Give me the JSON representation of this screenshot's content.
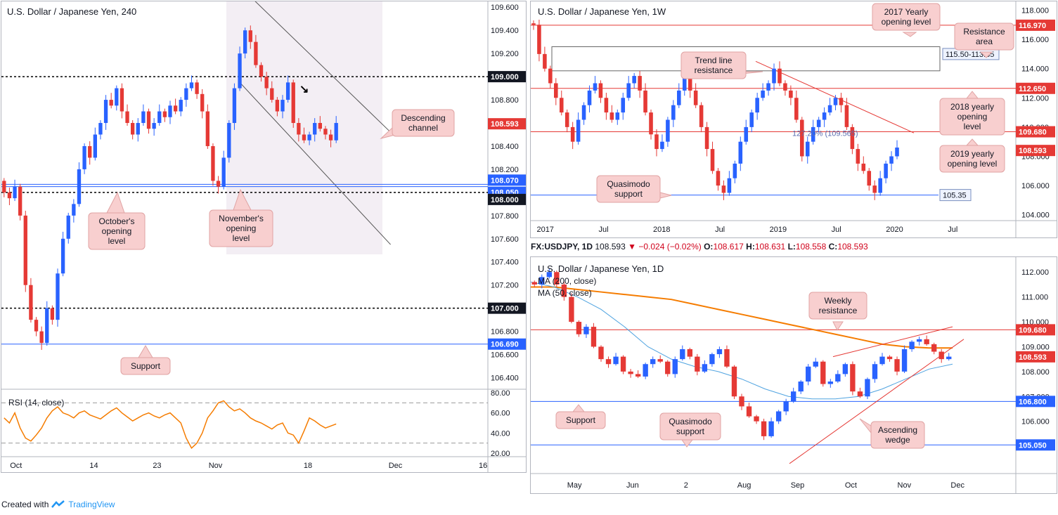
{
  "footer": {
    "created_with": "Created with",
    "brand": "TradingView"
  },
  "ticker_line": {
    "symbol": "FX:USDJPY, 1D",
    "last": "108.593",
    "change": "−0.024 (−0.02%)",
    "o_label": "O:",
    "o": "108.617",
    "h_label": "H:",
    "h": "108.631",
    "l_label": "L:",
    "l": "108.558",
    "c_label": "C:",
    "c": "108.593"
  },
  "colors": {
    "up": "#2962ff",
    "down": "#e53935",
    "ma200": "#f57c00",
    "ma50": "#4fa3e0",
    "rsi": "#f57c00",
    "resistance": "#e53935",
    "support": "#2962ff",
    "label_bg": "#f8cfcf",
    "price_tag": "#e53935",
    "level_tag": "#131722"
  },
  "chart_data": [
    {
      "type": "candlestick",
      "title": "U.S. Dollar / Japanese Yen, 240",
      "ylim": [
        106.3,
        109.65
      ],
      "y_ticks": [
        "109.600",
        "109.400",
        "109.200",
        "109.000",
        "108.800",
        "108.600",
        "108.400",
        "108.200",
        "108.000",
        "107.800",
        "107.600",
        "107.400",
        "107.200",
        "107.000",
        "106.800",
        "106.600",
        "106.400"
      ],
      "x_ticks": [
        "Oct",
        "14",
        "23",
        "Nov",
        "18",
        "Dec",
        "16"
      ],
      "x_tick_pos": [
        0.03,
        0.19,
        0.32,
        0.44,
        0.63,
        0.81,
        0.99
      ],
      "last_price": "108.593",
      "levels": [
        {
          "value": 109.0,
          "label": "109.000",
          "kind": "dotted"
        },
        {
          "value": 108.07,
          "label": "108.070",
          "kind": "support"
        },
        {
          "value": 108.05,
          "label": "108.050",
          "kind": "support"
        },
        {
          "value": 108.0,
          "label": "108.000",
          "kind": "dotted"
        },
        {
          "value": 107.0,
          "label": "107.000",
          "kind": "dotted"
        },
        {
          "value": 106.69,
          "label": "106.690",
          "kind": "support"
        }
      ],
      "channel": {
        "upper": [
          [
            0.49,
            109.78
          ],
          [
            0.8,
            108.52
          ]
        ],
        "lower": [
          [
            0.49,
            108.95
          ],
          [
            0.8,
            107.55
          ]
        ]
      },
      "closes": [
        108.0,
        107.95,
        108.05,
        107.8,
        107.2,
        106.9,
        106.8,
        106.7,
        107.0,
        106.9,
        107.3,
        107.6,
        107.8,
        107.9,
        108.2,
        108.4,
        108.3,
        108.5,
        108.6,
        108.8,
        108.75,
        108.9,
        108.7,
        108.6,
        108.5,
        108.6,
        108.7,
        108.55,
        108.6,
        108.7,
        108.65,
        108.75,
        108.7,
        108.8,
        108.9,
        108.95,
        108.85,
        108.7,
        108.4,
        108.1,
        108.05,
        108.3,
        108.6,
        108.9,
        109.2,
        109.4,
        109.3,
        109.1,
        109.0,
        108.9,
        108.8,
        108.7,
        108.8,
        108.95,
        108.6,
        108.5,
        108.45,
        108.5,
        108.6,
        108.55,
        108.5,
        108.45,
        108.6
      ],
      "annotations": [
        "Descending channel",
        "October's opening level",
        "November's opening level",
        "Support"
      ]
    },
    {
      "type": "line",
      "title": "RSI (14, close)",
      "ylim": [
        20,
        80
      ],
      "y_ticks": [
        "80.00",
        "60.00",
        "40.00",
        "20.00"
      ],
      "bands": [
        70,
        30
      ],
      "values": [
        55,
        50,
        60,
        45,
        35,
        32,
        38,
        45,
        55,
        62,
        66,
        60,
        58,
        55,
        60,
        62,
        58,
        56,
        54,
        58,
        62,
        65,
        60,
        56,
        52,
        55,
        58,
        60,
        57,
        55,
        58,
        60,
        55,
        50,
        35,
        25,
        30,
        40,
        55,
        62,
        70,
        72,
        66,
        62,
        64,
        60,
        55,
        52,
        50,
        47,
        44,
        48,
        50,
        40,
        38,
        30,
        42,
        55,
        52,
        48,
        45,
        47,
        49
      ]
    },
    {
      "type": "candlestick",
      "title": "U.S. Dollar / Japanese Yen, 1W",
      "ylim": [
        103.6,
        118.6
      ],
      "y_ticks": [
        "118.000",
        "116.000",
        "114.000",
        "112.000",
        "110.000",
        "108.000",
        "106.000",
        "104.000"
      ],
      "x_ticks": [
        "2017",
        "Jul",
        "2018",
        "Jul",
        "2019",
        "Jul",
        "2020",
        "Jul"
      ],
      "x_tick_pos": [
        0.03,
        0.15,
        0.27,
        0.39,
        0.51,
        0.63,
        0.75,
        0.87
      ],
      "last_price": "108.593",
      "levels": [
        {
          "value": 116.97,
          "label": "116.970",
          "kind": "resistance"
        },
        {
          "value": 112.65,
          "label": "112.650",
          "kind": "resistance"
        },
        {
          "value": 109.68,
          "label": "109.680",
          "kind": "resistance"
        },
        {
          "value": 105.35,
          "label": "105.35",
          "kind": "support"
        }
      ],
      "zone": {
        "from": 113.85,
        "to": 115.5,
        "label": "115.50-113.85"
      },
      "fib_label": "127.20% (109.565)",
      "closes": [
        117.0,
        115.0,
        114.0,
        113.0,
        112.0,
        111.0,
        110.0,
        109.0,
        110.5,
        111.5,
        112.5,
        113.0,
        112.0,
        111.0,
        110.5,
        111.0,
        112.0,
        113.0,
        113.5,
        112.5,
        111.0,
        109.5,
        108.5,
        109.0,
        110.5,
        111.5,
        112.5,
        113.5,
        112.5,
        111.5,
        110.0,
        108.5,
        107.0,
        106.0,
        105.5,
        106.5,
        107.5,
        109.0,
        110.0,
        111.0,
        112.0,
        112.5,
        113.0,
        114.0,
        113.0,
        112.5,
        112.0,
        110.5,
        108.0,
        109.0,
        110.0,
        110.5,
        111.0,
        111.5,
        112.0,
        111.5,
        110.0,
        108.5,
        107.5,
        107.0,
        106.0,
        105.5,
        106.5,
        107.5,
        108.0,
        108.6
      ],
      "annotations": [
        "2017 Yearly opening level",
        "Resistance area",
        "Trend line resistance",
        "2018 yearly opening level",
        "2019 yearly opening level",
        "Quasimodo support"
      ]
    },
    {
      "type": "candlestick",
      "title": "U.S. Dollar / Japanese Yen, 1D",
      "ylim": [
        103.9,
        112.6
      ],
      "y_ticks": [
        "112.000",
        "111.000",
        "110.000",
        "109.000",
        "108.000",
        "107.000",
        "106.000",
        "105.000"
      ],
      "x_ticks": [
        "May",
        "Jun",
        "2",
        "Aug",
        "Sep",
        "Oct",
        "Nov",
        "Dec"
      ],
      "x_tick_pos": [
        0.09,
        0.21,
        0.32,
        0.44,
        0.55,
        0.66,
        0.77,
        0.88
      ],
      "last_price": "108.593",
      "levels": [
        {
          "value": 109.68,
          "label": "109.680",
          "kind": "resistance"
        },
        {
          "value": 106.8,
          "label": "106.800",
          "kind": "support"
        },
        {
          "value": 105.05,
          "label": "105.050",
          "kind": "support"
        }
      ],
      "series_names": [
        "MA (200, close)",
        "MA (50, close)"
      ],
      "ma200": [
        111.4,
        111.4,
        111.3,
        111.2,
        111.1,
        111.0,
        110.9,
        110.7,
        110.5,
        110.3,
        110.1,
        109.9,
        109.7,
        109.5,
        109.3,
        109.1,
        109.0,
        108.95,
        108.95
      ],
      "ma50": [
        111.6,
        111.4,
        111.0,
        110.5,
        109.8,
        109.0,
        108.5,
        108.2,
        108.0,
        107.7,
        107.3,
        107.0,
        106.9,
        106.9,
        107.0,
        107.3,
        107.7,
        108.1,
        108.3
      ],
      "closes": [
        111.5,
        111.8,
        112.0,
        111.5,
        111.0,
        110.0,
        109.5,
        109.8,
        109.0,
        108.5,
        108.3,
        108.6,
        108.0,
        107.9,
        107.8,
        108.3,
        108.5,
        108.4,
        107.9,
        108.5,
        108.9,
        108.6,
        108.0,
        108.3,
        108.7,
        108.9,
        108.2,
        107.0,
        106.6,
        106.2,
        106.0,
        105.4,
        106.0,
        106.4,
        106.8,
        107.2,
        107.6,
        108.2,
        108.4,
        107.5,
        107.6,
        107.9,
        108.3,
        107.2,
        107.0,
        107.7,
        108.3,
        108.6,
        108.5,
        108.0,
        108.9,
        109.2,
        109.3,
        109.1,
        108.8,
        108.5,
        108.6
      ],
      "annotations": [
        "Weekly resistance",
        "Support",
        "Quasimodo support",
        "Ascending wedge"
      ]
    }
  ],
  "labels": {
    "descending_channel": "Descending channel",
    "octobers_opening": "October's opening level",
    "novembers_opening": "November's opening level",
    "support_240": "Support",
    "yearly_2017": "2017 Yearly opening level",
    "resistance_area": "Resistance area",
    "trendline_resistance": "Trend line resistance",
    "yearly_2018": "2018 yearly opening level",
    "yearly_2019": "2019 yearly opening level",
    "quasimodo_w": "Quasimodo support",
    "weekly_resistance": "Weekly resistance",
    "support_1d": "Support",
    "quasimodo_d": "Quasimodo support",
    "ascending_wedge": "Ascending wedge"
  }
}
